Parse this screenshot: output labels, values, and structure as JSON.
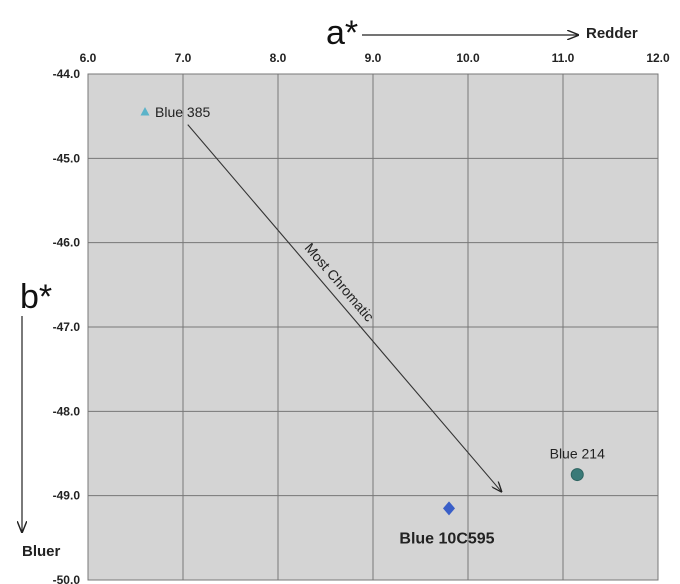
{
  "chart_data": {
    "type": "scatter",
    "x_axis": {
      "label": "a*",
      "direction_label": "Redder",
      "range": [
        6.0,
        12.0
      ],
      "ticks": [
        "6.0",
        "7.0",
        "8.0",
        "9.0",
        "10.0",
        "11.0",
        "12.0"
      ],
      "position": "top"
    },
    "y_axis": {
      "label": "b*",
      "direction_label": "Bluer",
      "range": [
        -50.0,
        -44.0
      ],
      "ticks": [
        "-44.0",
        "-45.0",
        "-46.0",
        "-47.0",
        "-48.0",
        "-49.0",
        "-50.0"
      ],
      "reversed": true
    },
    "grid": true,
    "plot_background": "#d4d4d4",
    "points": [
      {
        "label": "Blue 385",
        "x": 6.6,
        "y": -44.45,
        "marker": "triangle",
        "color": "#5bb3c9"
      },
      {
        "label": "Blue 214",
        "x": 11.15,
        "y": -48.75,
        "marker": "circle",
        "color": "#3a7a78"
      },
      {
        "label": "Blue 10C595",
        "x": 9.8,
        "y": -49.15,
        "marker": "diamond",
        "color": "#3a5fc8"
      }
    ],
    "annotation": {
      "text": "Most Chromatic",
      "from": {
        "x": 7.05,
        "y": -44.6
      },
      "to": {
        "x": 10.35,
        "y": -48.95
      }
    }
  }
}
